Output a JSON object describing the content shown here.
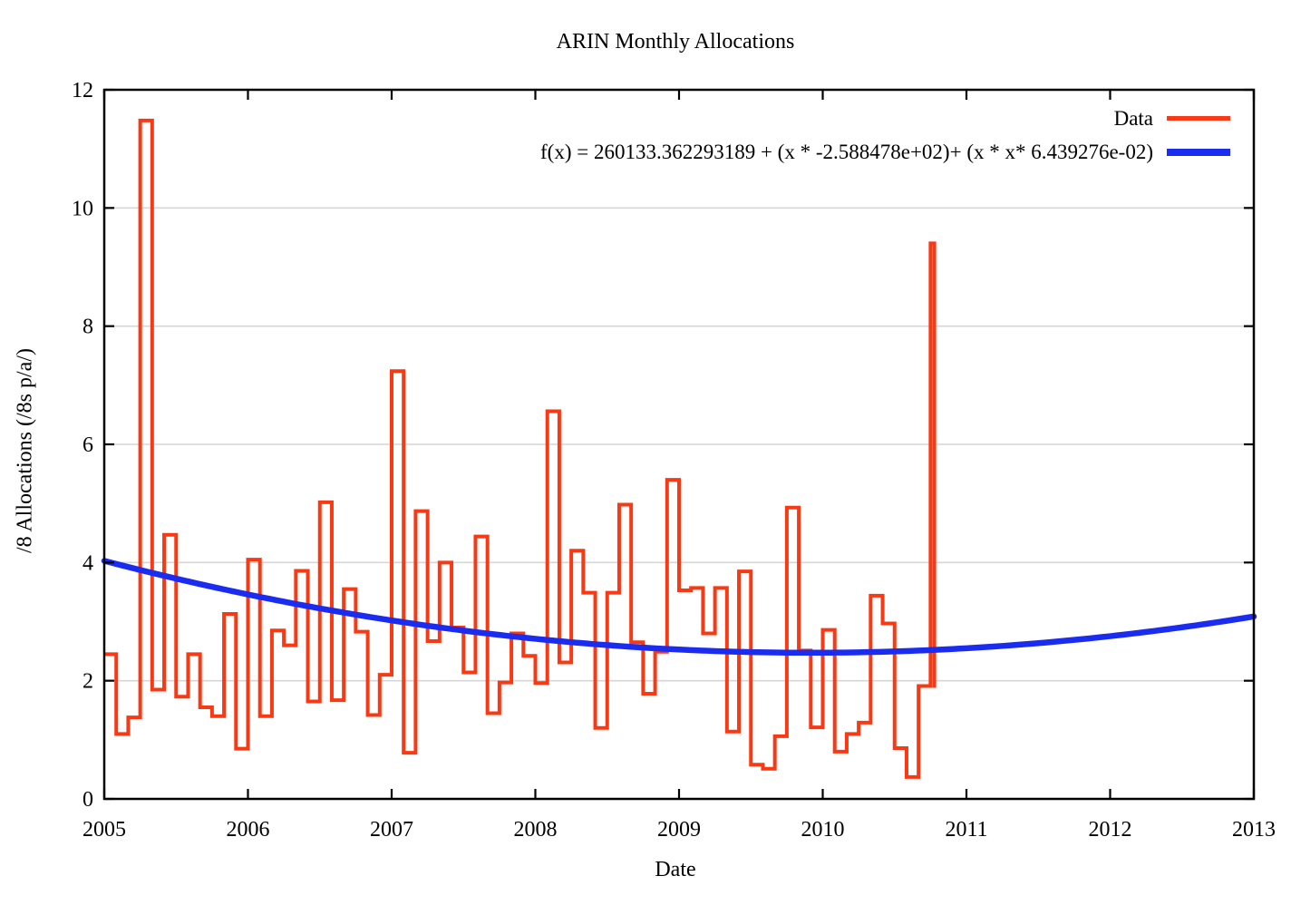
{
  "title": "ARIN Monthly Allocations",
  "xlabel": "Date",
  "ylabel": "/8 Allocations (/8s p/a/)",
  "legend": {
    "data_label": "Data",
    "fit_label": "f(x) = 260133.362293189 + (x * -2.588478e+02)+ (x * x* 6.439276e-02)"
  },
  "colors": {
    "data": "#f93814",
    "fit": "#1a2cf0",
    "grid": "#d6d6d6",
    "axis": "#000000",
    "text": "#000000"
  },
  "chart_data": {
    "type": "line",
    "title": "ARIN Monthly Allocations",
    "xlabel": "Date",
    "ylabel": "/8 Allocations (/8s p/a/)",
    "xlim": [
      2005,
      2013
    ],
    "ylim": [
      0,
      12
    ],
    "x_ticks": [
      2005,
      2006,
      2007,
      2008,
      2009,
      2010,
      2011,
      2012,
      2013
    ],
    "y_ticks": [
      0,
      2,
      4,
      6,
      8,
      10,
      12
    ],
    "grid": "horizontal-only",
    "legend_position": "top-right-inside",
    "series": [
      {
        "name": "Data",
        "style": "histogram-steps",
        "start_month": "2005-01",
        "sampling": "monthly",
        "values": [
          2.45,
          1.1,
          1.38,
          11.48,
          1.85,
          4.47,
          1.73,
          2.45,
          1.55,
          1.4,
          3.13,
          0.85,
          4.05,
          1.4,
          2.85,
          2.6,
          3.86,
          1.65,
          5.02,
          1.67,
          3.55,
          2.83,
          1.42,
          2.1,
          7.24,
          0.78,
          4.87,
          2.67,
          4.0,
          2.9,
          2.14,
          4.44,
          1.45,
          1.97,
          2.8,
          2.42,
          1.96,
          6.56,
          2.31,
          4.2,
          3.49,
          1.2,
          3.49,
          4.98,
          2.65,
          1.78,
          2.49,
          5.4,
          3.53,
          3.57,
          2.8,
          3.57,
          1.14,
          3.85,
          0.58,
          0.51,
          1.06,
          4.93,
          2.51,
          1.21,
          2.86,
          0.8,
          1.1,
          1.29,
          3.44,
          2.97,
          0.86,
          0.37,
          1.91,
          9.4
        ]
      },
      {
        "name": "f(x)",
        "style": "quadratic-curve",
        "coefficients": {
          "a": 260133.362293189,
          "b": -258.8478,
          "c": 0.06439276
        },
        "domain": [
          2005,
          2013
        ]
      }
    ]
  }
}
